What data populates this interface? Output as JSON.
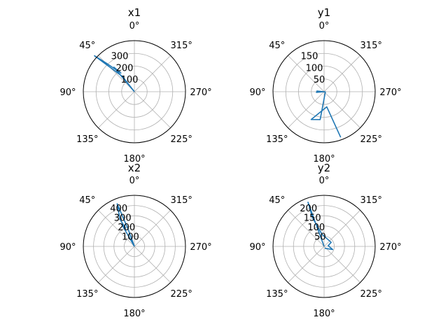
{
  "chart_data": [
    {
      "type": "polar-line",
      "title": "x1",
      "theta_zero_location": "N",
      "theta_direction": "counterclockwise",
      "theta_tick_labels": [
        "0°",
        "45°",
        "90°",
        "135°",
        "180°",
        "225°",
        "270°",
        "315°"
      ],
      "r_max": 400,
      "r_ticks": [
        100,
        200,
        300
      ],
      "r_tick_labels": [
        "100",
        "200",
        "300"
      ],
      "grid": true,
      "series": [
        {
          "color": "#1f77b4",
          "points": [
            [
              0,
              0
            ],
            [
              40,
              250
            ],
            [
              36,
              180
            ],
            [
              44,
              300
            ],
            [
              48,
              420
            ],
            [
              38,
              150
            ],
            [
              0,
              0
            ]
          ]
        }
      ]
    },
    {
      "type": "polar-line",
      "title": "y1",
      "theta_zero_location": "N",
      "theta_direction": "counterclockwise",
      "theta_tick_labels": [
        "0°",
        "45°",
        "90°",
        "135°",
        "180°",
        "225°",
        "270°",
        "315°"
      ],
      "r_max": 200,
      "r_ticks": [
        50,
        100,
        150
      ],
      "r_tick_labels": [
        "50",
        "100",
        "150"
      ],
      "grid": true,
      "series": [
        {
          "color": "#1f77b4",
          "points": [
            [
              0,
              0
            ],
            [
              95,
              30
            ],
            [
              85,
              28
            ],
            [
              260,
              5
            ],
            [
              172,
              110
            ],
            [
              155,
              120
            ],
            [
              190,
              60
            ],
            [
              200,
              190
            ]
          ]
        }
      ]
    },
    {
      "type": "polar-line",
      "title": "x2",
      "theta_zero_location": "N",
      "theta_direction": "counterclockwise",
      "theta_tick_labels": [
        "0°",
        "45°",
        "90°",
        "135°",
        "180°",
        "225°",
        "270°",
        "315°"
      ],
      "r_max": 500,
      "r_ticks": [
        100,
        200,
        300,
        400
      ],
      "r_tick_labels": [
        "100",
        "200",
        "300",
        "400"
      ],
      "grid": true,
      "series": [
        {
          "color": "#1f77b4",
          "points": [
            [
              0,
              0
            ],
            [
              30,
              250
            ],
            [
              26,
              200
            ],
            [
              28,
              300
            ],
            [
              22,
              450
            ],
            [
              20,
              180
            ],
            [
              0,
              0
            ]
          ]
        }
      ]
    },
    {
      "type": "polar-line",
      "title": "y2",
      "theta_zero_location": "N",
      "theta_direction": "counterclockwise",
      "theta_tick_labels": [
        "0°",
        "45°",
        "90°",
        "135°",
        "180°",
        "225°",
        "270°",
        "315°"
      ],
      "r_max": 250,
      "r_ticks": [
        50,
        100,
        150,
        200
      ],
      "r_tick_labels": [
        "50",
        "100",
        "150",
        "200"
      ],
      "grid": true,
      "series": [
        {
          "color": "#1f77b4",
          "points": [
            [
              0,
              0
            ],
            [
              20,
              230
            ],
            [
              22,
              150
            ],
            [
              10,
              60
            ],
            [
              300,
              40
            ],
            [
              280,
              20
            ],
            [
              250,
              45
            ],
            [
              200,
              10
            ]
          ]
        }
      ]
    }
  ]
}
